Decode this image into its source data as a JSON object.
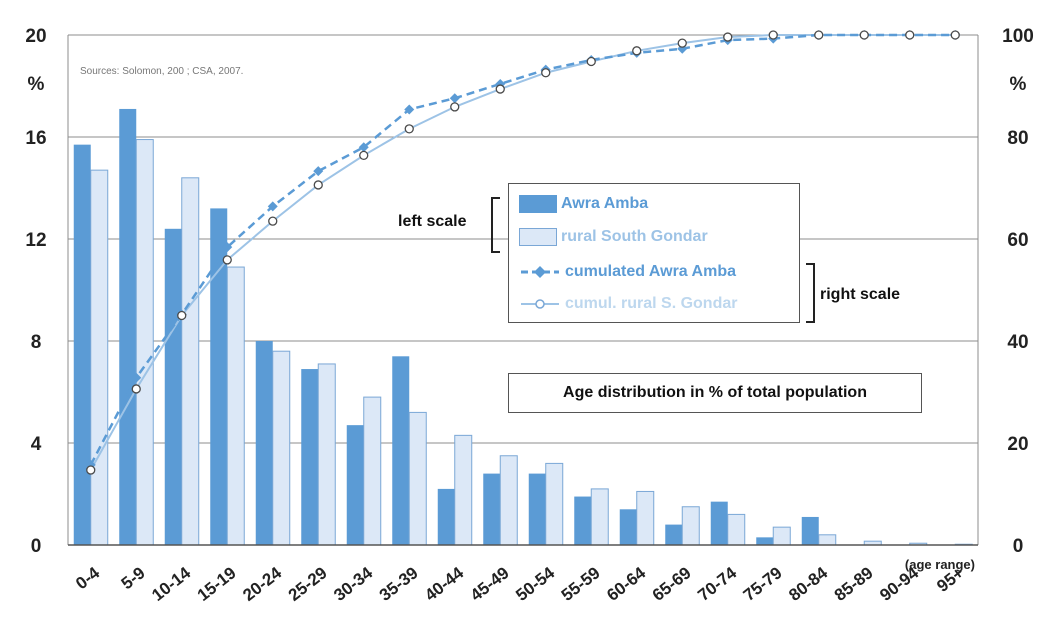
{
  "chart_data": {
    "type": "bar",
    "title": "Age distribution in % of total population",
    "source": "Sources: Solomon, 200 ; CSA, 2007.",
    "xlabel": "(age range)",
    "left_unit": "%",
    "right_unit": "%",
    "left_scale_label": "left scale",
    "right_scale_label": "right scale",
    "categories": [
      "0-4",
      "5-9",
      "10-14",
      "15-19",
      "20-24",
      "25-29",
      "30-34",
      "35-39",
      "40-44",
      "45-49",
      "50-54",
      "55-59",
      "60-64",
      "65-69",
      "70-74",
      "75-79",
      "80-84",
      "85-89",
      "90-94",
      "95+"
    ],
    "ylim_left": [
      0,
      20
    ],
    "yticks_left": [
      0,
      4,
      8,
      12,
      16,
      20
    ],
    "ylim_right": [
      0,
      100
    ],
    "yticks_right": [
      0,
      20,
      40,
      60,
      80,
      100
    ],
    "grid": true,
    "legend_position": "center-right",
    "series": [
      {
        "name": "Awra Amba",
        "kind": "bar",
        "axis": "left",
        "color": "#5b9bd5",
        "values": [
          15.7,
          17.1,
          12.4,
          13.2,
          8.0,
          6.9,
          4.7,
          7.4,
          2.2,
          2.8,
          2.8,
          1.9,
          1.4,
          0.8,
          1.7,
          0.3,
          1.1,
          0.0,
          0.0,
          0.0
        ]
      },
      {
        "name": "rural South Gondar",
        "kind": "bar",
        "axis": "left",
        "color": "#dce8f7",
        "values": [
          14.7,
          15.9,
          14.4,
          10.9,
          7.6,
          7.1,
          5.8,
          5.2,
          4.3,
          3.5,
          3.2,
          2.2,
          2.1,
          1.5,
          1.2,
          0.7,
          0.4,
          0.15,
          0.07,
          0.03
        ]
      },
      {
        "name": "cumulated Awra Amba",
        "kind": "line",
        "axis": "right",
        "color": "#5b9bd5",
        "values": [
          15.7,
          32.8,
          45.2,
          58.4,
          66.4,
          73.3,
          78.0,
          85.4,
          87.6,
          90.4,
          93.2,
          95.1,
          96.5,
          97.3,
          99.0,
          99.3,
          100.0,
          100.0,
          100.0,
          100.0
        ]
      },
      {
        "name": "cumul. rural S. Gondar",
        "kind": "line",
        "axis": "right",
        "color": "#9dc3e6",
        "values": [
          14.7,
          30.6,
          45.0,
          55.9,
          63.5,
          70.6,
          76.4,
          81.6,
          85.9,
          89.4,
          92.6,
          94.8,
          96.9,
          98.4,
          99.6,
          100.0,
          100.0,
          100.0,
          100.0,
          100.0
        ]
      }
    ]
  }
}
